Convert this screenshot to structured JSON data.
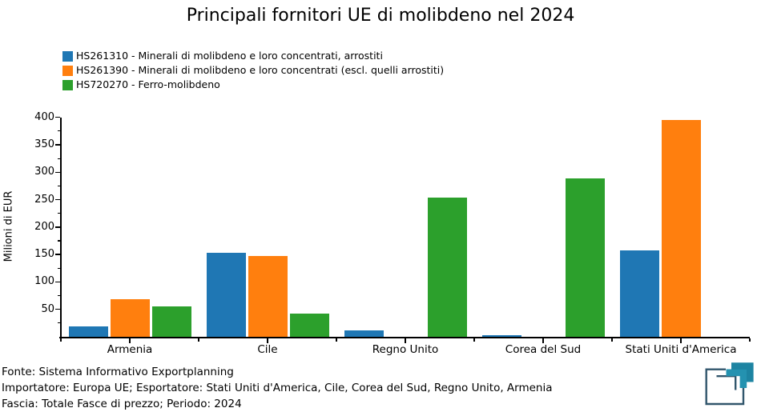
{
  "chart_data": {
    "type": "bar",
    "title": "Principali fornitori UE di molibdeno nel 2024",
    "xlabel": "",
    "ylabel": "Milioni di EUR",
    "categories": [
      "Armenia",
      "Cile",
      "Regno Unito",
      "Corea del Sud",
      "Stati Uniti d'America"
    ],
    "series": [
      {
        "name": "HS261310 - Minerali di molibdeno e loro concentrati, arrostiti",
        "color": "#1f77b4",
        "values": [
          19,
          153,
          12,
          3,
          157
        ]
      },
      {
        "name": "HS261390 - Minerali di molibdeno e loro concentrati (escl. quelli arrostiti)",
        "color": "#ff7f0e",
        "values": [
          68,
          148,
          0,
          0,
          395
        ]
      },
      {
        "name": "HS720270 - Ferro-molibdeno",
        "color": "#2ca02c",
        "values": [
          56,
          42,
          253,
          289,
          0
        ]
      }
    ],
    "ylim": [
      0,
      400
    ],
    "yticks": [
      50,
      100,
      150,
      200,
      250,
      300,
      350,
      400
    ],
    "y_minor_step": 25,
    "grid": false,
    "legend_position": "upper-left",
    "unit": "Milioni di EUR"
  },
  "footer": {
    "line1": "Fonte: Sistema Informativo Exportplanning",
    "line2": "Importatore: Europa UE; Esportatore: Stati Uniti d'America, Cile, Corea del Sud, Regno Unito, Armenia",
    "line3": "Fascia: Totale Fasce di prezzo; Periodo: 2024"
  },
  "logo": {
    "teal": "#2492b0",
    "teal_dark": "#1d84a2",
    "slate": "#31566c"
  }
}
